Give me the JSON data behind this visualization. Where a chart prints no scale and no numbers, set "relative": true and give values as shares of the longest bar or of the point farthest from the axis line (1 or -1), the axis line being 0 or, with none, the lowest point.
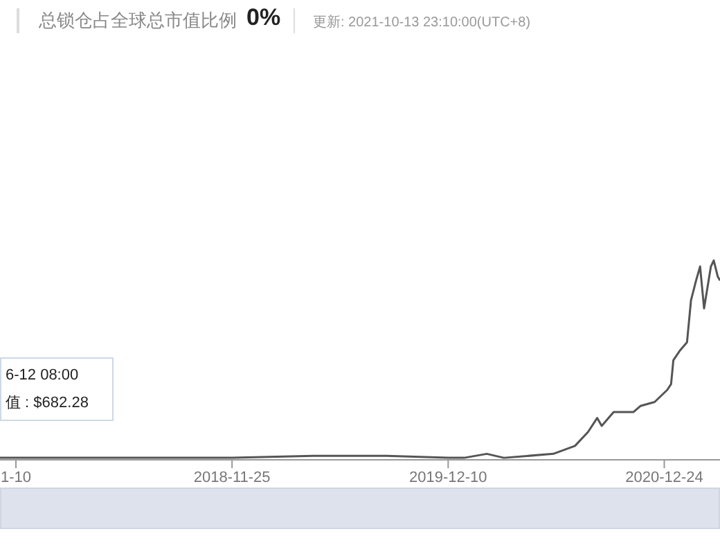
{
  "chart_data": {
    "type": "line",
    "title": "总锁仓占全球总市值比例",
    "relative": true,
    "marker": "none",
    "line_style": "solid",
    "annotations": [
      "0%",
      "更新: 2021-10-13 23:10:00(UTC+8)",
      "6-12 08:00",
      "值 : $682.28"
    ],
    "xlim": [
      "2017-10-13",
      "2021-04-01"
    ],
    "xticks": [
      {
        "value": "2017-11-10",
        "label": "1-10"
      },
      {
        "value": "2018-11-25",
        "label": "2018-11-25"
      },
      {
        "value": "2019-12-10",
        "label": "2019-12-10"
      },
      {
        "value": "2020-12-24",
        "label": "2020-12-24"
      }
    ],
    "x": [
      "2017-10-13",
      "2018-06-04",
      "2018-11-25",
      "2019-04-17",
      "2019-08-24",
      "2019-12-10",
      "2020-01-07",
      "2020-02-16",
      "2020-03-17",
      "2020-06-12",
      "2020-07-20",
      "2020-08-12",
      "2020-08-28",
      "2020-09-05",
      "2020-09-26",
      "2020-10-31",
      "2020-11-12",
      "2020-12-07",
      "2020-12-29",
      "2021-01-05",
      "2021-01-09",
      "2021-01-21",
      "2021-02-02",
      "2021-02-09",
      "2021-02-18",
      "2021-02-25",
      "2021-03-04",
      "2021-03-16",
      "2021-03-21",
      "2021-03-28",
      "2021-04-01"
    ],
    "series": [
      {
        "color": "#555555",
        "values": [
          0.01,
          0.01,
          0.01,
          0.02,
          0.02,
          0.01,
          0.01,
          0.03,
          0.01,
          0.03,
          0.07,
          0.14,
          0.21,
          0.17,
          0.24,
          0.24,
          0.27,
          0.29,
          0.35,
          0.38,
          0.5,
          0.55,
          0.59,
          0.8,
          0.9,
          0.97,
          0.76,
          0.97,
          1,
          0.92,
          0.9
        ]
      }
    ]
  }
}
